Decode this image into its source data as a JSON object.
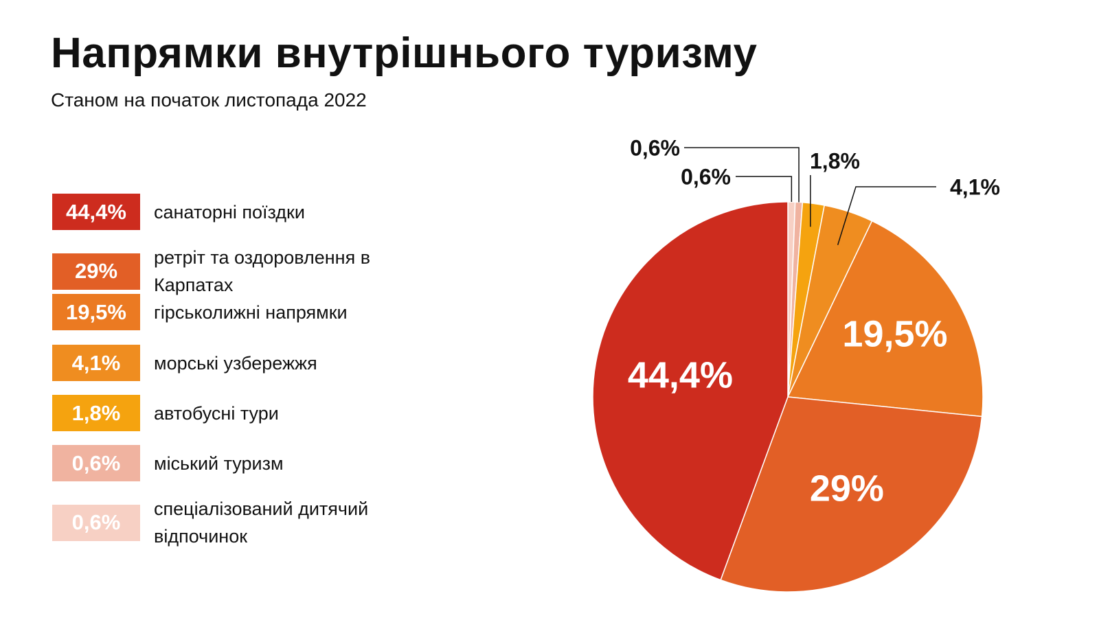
{
  "title": "Напрямки внутрішнього туризму",
  "subtitle": "Станом на початок листопада 2022",
  "chart_data": {
    "type": "pie",
    "title": "Напрямки внутрішнього туризму",
    "subtitle": "Станом на початок листопада 2022",
    "slices": [
      {
        "label": "санаторні поїздки",
        "value": 44.4,
        "text": "44,4%",
        "color": "#cd2c1e"
      },
      {
        "label": "ретріт та оздоровлення в Карпатах",
        "value": 29,
        "text": "29%",
        "color": "#e25f26"
      },
      {
        "label": "гірськолижні напрямки",
        "value": 19.5,
        "text": "19,5%",
        "color": "#eb7a22"
      },
      {
        "label": "морські узбережжя",
        "value": 4.1,
        "text": "4,1%",
        "color": "#ef8d20"
      },
      {
        "label": "автобусні тури",
        "value": 1.8,
        "text": "1,8%",
        "color": "#f5a30f"
      },
      {
        "label": "міський туризм",
        "value": 0.6,
        "text": "0,6%",
        "color": "#f0b3a0"
      },
      {
        "label": "спеціалізований дитячий відпочинок",
        "value": 0.6,
        "text": "0,6%",
        "color": "#f7d0c4"
      }
    ],
    "legend_position": "left"
  }
}
